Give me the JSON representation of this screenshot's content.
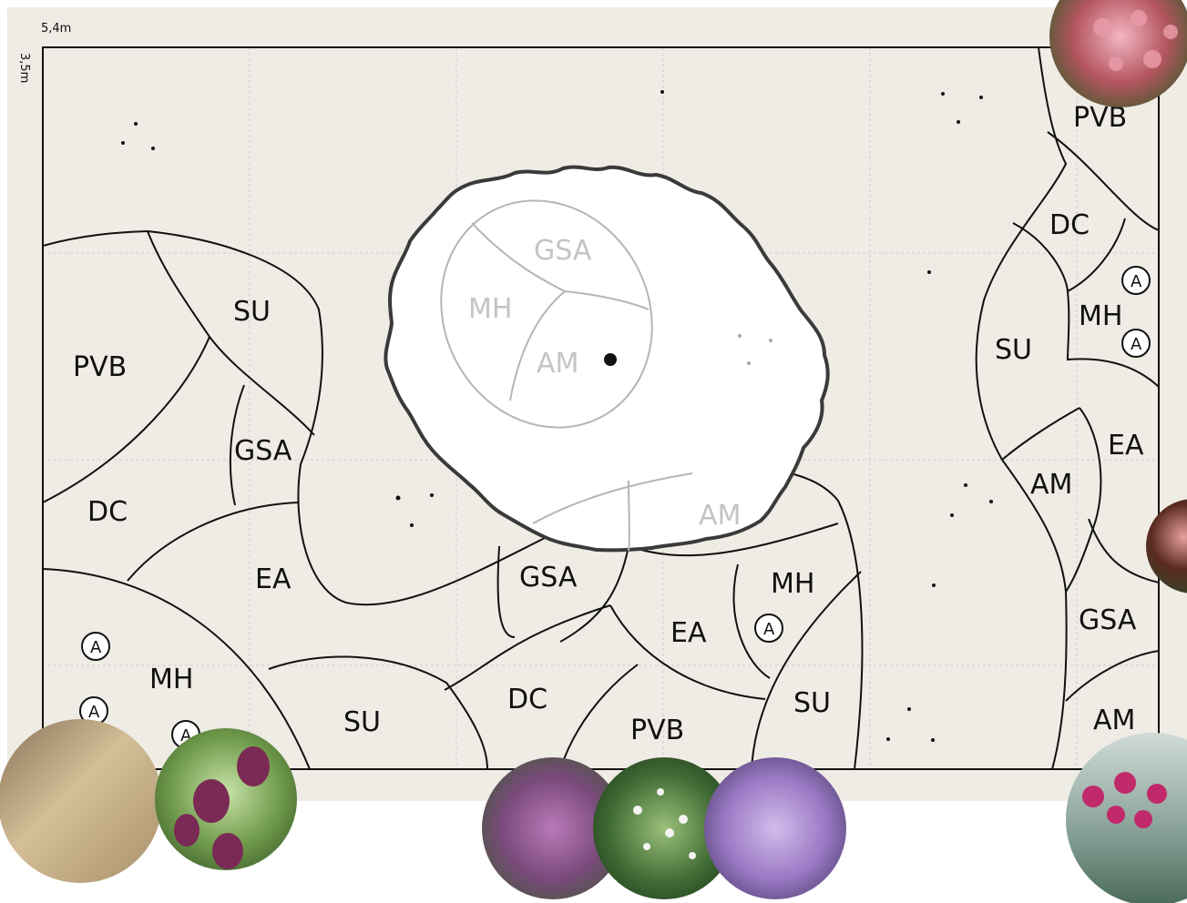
{
  "plan": {
    "width_label": "5,4m",
    "depth_label": "3,5m",
    "colors": {
      "bed": "#efebe5",
      "line": "#111111",
      "ghost": "#bdbdbd"
    }
  },
  "zones": [
    "PVB",
    "DC",
    "MH",
    "SU",
    "EA",
    "AM",
    "GSA",
    "SU",
    "PVB",
    "GSA",
    "DC",
    "EA",
    "MH",
    "SU",
    "DC",
    "PVB",
    "GSA",
    "EA",
    "MH",
    "SU",
    "AM",
    "GSA",
    "MH",
    "AM"
  ],
  "zone_labels": {
    "pvb_top_right": "PVB",
    "dc_right": "DC",
    "mh_right": "MH",
    "su_right": "SU",
    "ea_right": "EA",
    "am_right": "AM",
    "gsa_right": "GSA",
    "am_bottom_right": "AM",
    "su_top_left": "SU",
    "pvb_left": "PVB",
    "gsa_left": "GSA",
    "dc_left": "DC",
    "ea_left": "EA",
    "mh_bottom_left": "MH",
    "su_bottom": "SU",
    "dc_bottom": "DC",
    "pvb_bottom": "PVB",
    "gsa_center": "GSA",
    "ea_center": "EA",
    "mh_center": "MH",
    "su_center": "SU",
    "gsa_under_tree": "GSA",
    "mh_under_tree": "MH",
    "am_under_tree": "AM",
    "am_under_tree_low": "AM"
  },
  "marker_label": "A",
  "photos": [
    {
      "name": "echinacea-photo",
      "palette": [
        "#e99aa8",
        "#8a3a3a",
        "#3d5a2a"
      ]
    },
    {
      "name": "echinacea-side-photo",
      "palette": [
        "#d98b8b",
        "#5a2a20",
        "#2f4a2a"
      ]
    },
    {
      "name": "grass-photo",
      "palette": [
        "#c8b08a",
        "#7a6a55",
        "#a88f6a"
      ]
    },
    {
      "name": "allium-photo",
      "palette": [
        "#7a2a55",
        "#6f9a4a",
        "#b8d89a"
      ]
    },
    {
      "name": "dianthus-photo",
      "palette": [
        "#8b4a8c",
        "#4a6a3a",
        "#b070b0"
      ]
    },
    {
      "name": "white-flower-photo",
      "palette": [
        "#f4f4f0",
        "#2f5a2a",
        "#8ab06a"
      ]
    },
    {
      "name": "lavender-photo",
      "palette": [
        "#9a7ac4",
        "#5a4a8a",
        "#c4a8e0"
      ]
    },
    {
      "name": "armeria-photo",
      "palette": [
        "#c02a6a",
        "#5a7a6a",
        "#c8d4d0"
      ]
    }
  ]
}
